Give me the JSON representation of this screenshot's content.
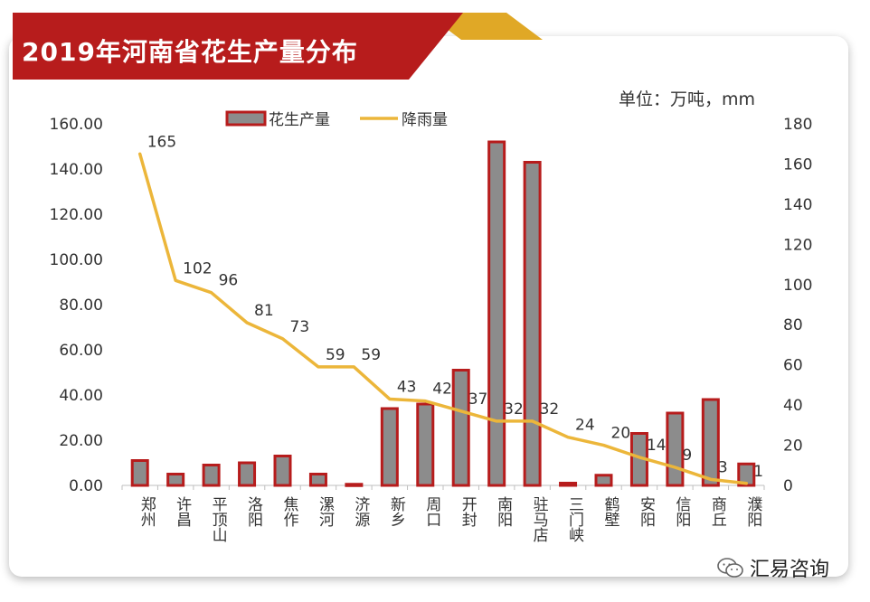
{
  "page": {
    "title": "2019年河南省花生产量分布",
    "unit": "单位：万吨，mm",
    "watermark": "汇易咨询",
    "watermark_icon": "wechat-icon"
  },
  "colors": {
    "banner": "#b71c1c",
    "banner_accent": "#e0a826",
    "bar_fill": "#8c8c8c",
    "bar_border": "#b71c1c",
    "line": "#ecb63a"
  },
  "chart_data": {
    "type": "bar+line",
    "categories": [
      "郑州",
      "许昌",
      "平顶山",
      "洛阳",
      "焦作",
      "漯河",
      "济源",
      "新乡",
      "周口",
      "开封",
      "南阳",
      "驻马店",
      "三门峡",
      "鹤壁",
      "安阳",
      "信阳",
      "商丘",
      "濮阳"
    ],
    "series": [
      {
        "name": "花生产量",
        "type": "bar",
        "axis": "left",
        "values": [
          11,
          5,
          9,
          10,
          13,
          5,
          0.5,
          34,
          36,
          51,
          152,
          143,
          1,
          4.5,
          23,
          32,
          38,
          9.5
        ]
      },
      {
        "name": "降雨量",
        "type": "line",
        "axis": "right",
        "values": [
          165,
          102,
          96,
          81,
          73,
          59,
          59,
          43,
          42,
          37,
          32,
          32,
          24,
          20,
          14,
          9,
          3,
          1
        ],
        "labels": [
          "165",
          "102",
          "96",
          "81",
          "73",
          "59",
          "59",
          "43",
          "42",
          "37",
          "32",
          "32",
          "24",
          "20",
          "14",
          "9",
          "3",
          "1"
        ]
      }
    ],
    "y_left": {
      "min": 0,
      "max": 160,
      "step": 20,
      "ticks": [
        "0.00",
        "20.00",
        "40.00",
        "60.00",
        "80.00",
        "100.00",
        "120.00",
        "140.00",
        "160.00"
      ]
    },
    "y_right": {
      "min": 0,
      "max": 180,
      "step": 20,
      "ticks": [
        "0",
        "20",
        "40",
        "60",
        "80",
        "100",
        "120",
        "140",
        "160",
        "180"
      ]
    },
    "legend": {
      "position": "top",
      "items": [
        "花生产量",
        "降雨量"
      ]
    },
    "grid": false
  }
}
